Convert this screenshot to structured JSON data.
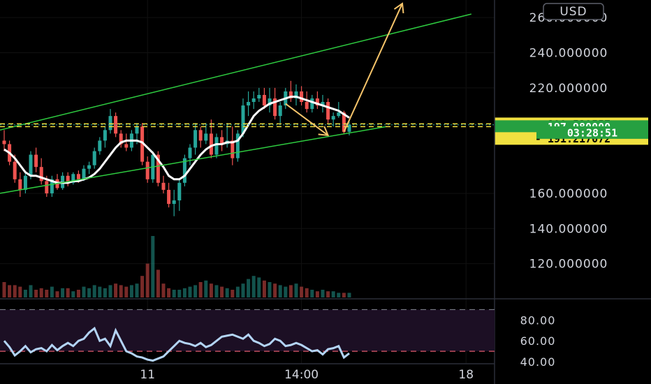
{
  "currency_button": "USD",
  "colors": {
    "background": "#000000",
    "up": "#26a69a",
    "down": "#ef5350",
    "channel": "#2ecc40",
    "level": "#f0e040",
    "arrow": "#f5c46a",
    "ma": "#ffffff",
    "osc_line": "#b3d4f5",
    "osc_band": "#1c0f24"
  },
  "chart_data": [
    {
      "type": "line",
      "panel": "price",
      "y_ticks": [
        "260.000000",
        "240.000000",
        "220.000000",
        "160.000000",
        "140.000000",
        "120.000000"
      ],
      "ylim": [
        100,
        270
      ],
      "x_tick_labels": [
        "11",
        "14:00",
        "18"
      ],
      "grid": true,
      "candles": [
        {
          "o": 190,
          "h": 196,
          "l": 184,
          "c": 188
        },
        {
          "o": 188,
          "h": 190,
          "l": 176,
          "c": 178
        },
        {
          "o": 178,
          "h": 182,
          "l": 166,
          "c": 168
        },
        {
          "o": 168,
          "h": 172,
          "l": 158,
          "c": 162
        },
        {
          "o": 162,
          "h": 172,
          "l": 160,
          "c": 170
        },
        {
          "o": 170,
          "h": 184,
          "l": 168,
          "c": 182
        },
        {
          "o": 182,
          "h": 186,
          "l": 172,
          "c": 175
        },
        {
          "o": 175,
          "h": 180,
          "l": 165,
          "c": 167
        },
        {
          "o": 167,
          "h": 170,
          "l": 158,
          "c": 160
        },
        {
          "o": 160,
          "h": 170,
          "l": 158,
          "c": 168
        },
        {
          "o": 168,
          "h": 171,
          "l": 162,
          "c": 163
        },
        {
          "o": 163,
          "h": 172,
          "l": 162,
          "c": 170
        },
        {
          "o": 170,
          "h": 172,
          "l": 164,
          "c": 166
        },
        {
          "o": 166,
          "h": 172,
          "l": 165,
          "c": 171
        },
        {
          "o": 171,
          "h": 173,
          "l": 166,
          "c": 168
        },
        {
          "o": 168,
          "h": 176,
          "l": 167,
          "c": 174
        },
        {
          "o": 174,
          "h": 178,
          "l": 171,
          "c": 176
        },
        {
          "o": 176,
          "h": 186,
          "l": 174,
          "c": 184
        },
        {
          "o": 184,
          "h": 192,
          "l": 182,
          "c": 190
        },
        {
          "o": 190,
          "h": 198,
          "l": 186,
          "c": 196
        },
        {
          "o": 196,
          "h": 208,
          "l": 194,
          "c": 204
        },
        {
          "o": 204,
          "h": 206,
          "l": 192,
          "c": 194
        },
        {
          "o": 194,
          "h": 196,
          "l": 186,
          "c": 188
        },
        {
          "o": 188,
          "h": 194,
          "l": 184,
          "c": 186
        },
        {
          "o": 186,
          "h": 196,
          "l": 184,
          "c": 194
        },
        {
          "o": 194,
          "h": 200,
          "l": 188,
          "c": 198
        },
        {
          "o": 198,
          "h": 200,
          "l": 176,
          "c": 178
        },
        {
          "o": 178,
          "h": 181,
          "l": 166,
          "c": 168
        },
        {
          "o": 168,
          "h": 184,
          "l": 166,
          "c": 182
        },
        {
          "o": 182,
          "h": 184,
          "l": 164,
          "c": 166
        },
        {
          "o": 166,
          "h": 170,
          "l": 160,
          "c": 162
        },
        {
          "o": 162,
          "h": 166,
          "l": 152,
          "c": 154
        },
        {
          "o": 154,
          "h": 162,
          "l": 147,
          "c": 156
        },
        {
          "o": 156,
          "h": 168,
          "l": 150,
          "c": 166
        },
        {
          "o": 166,
          "h": 182,
          "l": 164,
          "c": 180
        },
        {
          "o": 180,
          "h": 188,
          "l": 176,
          "c": 186
        },
        {
          "o": 186,
          "h": 200,
          "l": 182,
          "c": 196
        },
        {
          "o": 196,
          "h": 198,
          "l": 186,
          "c": 190
        },
        {
          "o": 190,
          "h": 200,
          "l": 188,
          "c": 194
        },
        {
          "o": 194,
          "h": 202,
          "l": 180,
          "c": 182
        },
        {
          "o": 182,
          "h": 194,
          "l": 180,
          "c": 192
        },
        {
          "o": 192,
          "h": 196,
          "l": 184,
          "c": 188
        },
        {
          "o": 188,
          "h": 200,
          "l": 186,
          "c": 190
        },
        {
          "o": 190,
          "h": 198,
          "l": 176,
          "c": 180
        },
        {
          "o": 180,
          "h": 196,
          "l": 178,
          "c": 194
        },
        {
          "o": 194,
          "h": 214,
          "l": 192,
          "c": 210
        },
        {
          "o": 210,
          "h": 218,
          "l": 204,
          "c": 212
        },
        {
          "o": 212,
          "h": 218,
          "l": 208,
          "c": 214
        },
        {
          "o": 214,
          "h": 220,
          "l": 212,
          "c": 216
        },
        {
          "o": 216,
          "h": 220,
          "l": 208,
          "c": 210
        },
        {
          "o": 210,
          "h": 220,
          "l": 206,
          "c": 214
        },
        {
          "o": 214,
          "h": 220,
          "l": 202,
          "c": 204
        },
        {
          "o": 204,
          "h": 212,
          "l": 200,
          "c": 210
        },
        {
          "o": 210,
          "h": 220,
          "l": 208,
          "c": 218
        },
        {
          "o": 218,
          "h": 224,
          "l": 212,
          "c": 214
        },
        {
          "o": 214,
          "h": 222,
          "l": 210,
          "c": 218
        },
        {
          "o": 218,
          "h": 221,
          "l": 210,
          "c": 212
        },
        {
          "o": 212,
          "h": 218,
          "l": 206,
          "c": 208
        },
        {
          "o": 208,
          "h": 216,
          "l": 206,
          "c": 214
        },
        {
          "o": 214,
          "h": 218,
          "l": 208,
          "c": 210
        },
        {
          "o": 210,
          "h": 216,
          "l": 206,
          "c": 212
        },
        {
          "o": 212,
          "h": 214,
          "l": 200,
          "c": 202
        },
        {
          "o": 202,
          "h": 206,
          "l": 198,
          "c": 204
        },
        {
          "o": 204,
          "h": 212,
          "l": 203,
          "c": 206
        },
        {
          "o": 206,
          "h": 207,
          "l": 194,
          "c": 195
        },
        {
          "o": 195,
          "h": 201,
          "l": 193,
          "c": 199
        }
      ],
      "moving_average": [
        185,
        183,
        180,
        176,
        172,
        170,
        170,
        169,
        168,
        167,
        166,
        166,
        166,
        167,
        167,
        168,
        169,
        171,
        174,
        178,
        182,
        186,
        189,
        190,
        190,
        190,
        189,
        186,
        183,
        179,
        175,
        170,
        168,
        168,
        170,
        174,
        178,
        182,
        185,
        187,
        188,
        188,
        189,
        189,
        190,
        194,
        199,
        204,
        207,
        209,
        211,
        212,
        213,
        214,
        215,
        215,
        214,
        213,
        212,
        211,
        210,
        209,
        208,
        207,
        205,
        203
      ],
      "volume": [
        10,
        8,
        8,
        7,
        5,
        8,
        5,
        6,
        5,
        7,
        4,
        6,
        6,
        4,
        5,
        7,
        6,
        8,
        7,
        6,
        8,
        9,
        8,
        7,
        8,
        9,
        14,
        22,
        40,
        18,
        9,
        6,
        5,
        5,
        6,
        7,
        8,
        10,
        11,
        9,
        8,
        7,
        6,
        5,
        7,
        9,
        12,
        14,
        13,
        11,
        10,
        9,
        8,
        7,
        8,
        9,
        7,
        6,
        5,
        4,
        5,
        4,
        4,
        3,
        3,
        3
      ],
      "levels": [
        {
          "label": "199.539557",
          "value": 199.539557,
          "style": "dashed"
        },
        {
          "label": "197.980000",
          "value": 197.98,
          "style": "dashed"
        },
        {
          "label": "191.217072",
          "value": 191.217072,
          "style": "tag"
        }
      ],
      "countdown": "03:28:51",
      "channel_upper": [
        {
          "x": 0,
          "y": 196
        },
        {
          "x": 88,
          "y": 262
        }
      ],
      "channel_lower": [
        {
          "x": 0,
          "y": 160
        },
        {
          "x": 72,
          "y": 198
        }
      ],
      "arrows": [
        {
          "from": {
            "x": 53,
            "y": 211
          },
          "to": {
            "x": 61,
            "y": 193
          }
        },
        {
          "from": {
            "x": 64,
            "y": 195
          },
          "to": {
            "x": 75,
            "y": 268
          }
        }
      ]
    },
    {
      "type": "line",
      "panel": "oscillator",
      "y_ticks": [
        "80.00",
        "60.00",
        "40.00"
      ],
      "ylim": [
        38,
        95
      ],
      "levels": [
        90,
        50
      ],
      "values": [
        60,
        54,
        46,
        50,
        55,
        49,
        52,
        53,
        50,
        56,
        51,
        55,
        58,
        55,
        60,
        62,
        68,
        72,
        60,
        62,
        55,
        70,
        60,
        50,
        48,
        45,
        44,
        42,
        41,
        43,
        45,
        50,
        55,
        60,
        58,
        57,
        55,
        58,
        54,
        56,
        60,
        64,
        65,
        66,
        64,
        62,
        66,
        60,
        58,
        55,
        57,
        62,
        60,
        55,
        56,
        58,
        56,
        53,
        50,
        51,
        47,
        52,
        53,
        55,
        44,
        48
      ]
    }
  ]
}
